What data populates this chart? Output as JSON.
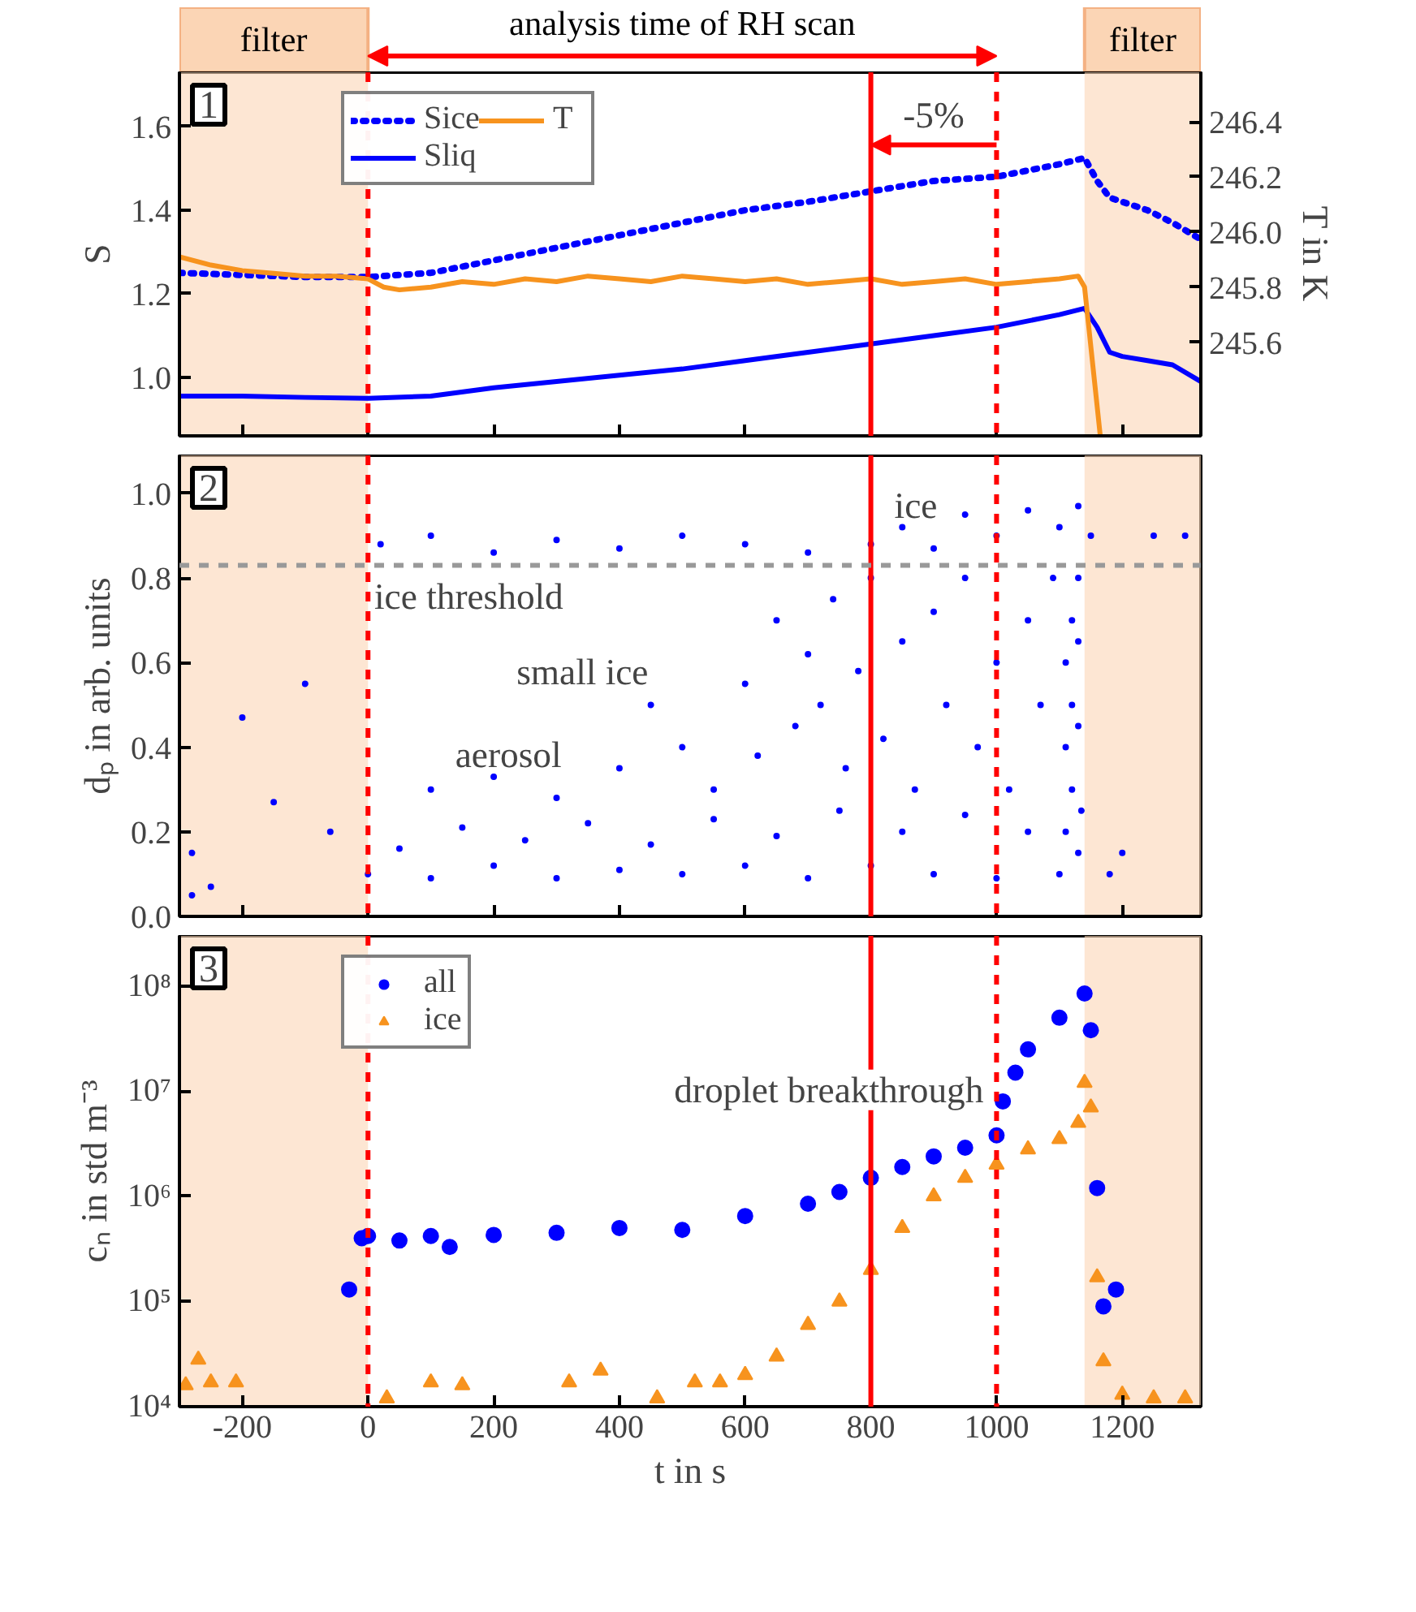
{
  "chart_data": [
    {
      "type": "line",
      "ylabel": "S",
      "y2label": "T in K",
      "xlim": [
        -300,
        1325
      ],
      "ylim": [
        0.86,
        1.73
      ],
      "y2lim": [
        245.26,
        246.58
      ],
      "xticks": [
        -200,
        0,
        200,
        400,
        600,
        800,
        1000,
        1200
      ],
      "yticks": [
        {
          "value": 1.0,
          "label": "1.0"
        },
        {
          "value": 1.2,
          "label": "1.2"
        },
        {
          "value": 1.4,
          "label": "1.4"
        },
        {
          "value": 1.6,
          "label": "1.6"
        }
      ],
      "y2ticks": [
        {
          "value": 245.6,
          "label": "245.6"
        },
        {
          "value": 245.8,
          "label": "245.8"
        },
        {
          "value": 246.0,
          "label": "246.0"
        },
        {
          "value": 246.2,
          "label": "246.2"
        },
        {
          "value": 246.4,
          "label": "246.4"
        }
      ],
      "tick_labels": "y",
      "grid": false,
      "legend": "top left",
      "annotations": [
        "1",
        "analysis time of RH scan",
        "-5%"
      ],
      "bands": [
        {
          "axis": "x",
          "from": -300,
          "to": 0,
          "label": "filter",
          "color": "#fbd5b5"
        },
        {
          "axis": "x",
          "from": 1140,
          "to": 1325,
          "label": "filter",
          "color": "#fbd5b5"
        }
      ],
      "ref_lines": [
        {
          "axis": "x",
          "value": 0,
          "color": "#ff0000",
          "line_style": "dashed"
        },
        {
          "axis": "x",
          "value": 800,
          "color": "#ff0000",
          "line_style": "solid"
        },
        {
          "axis": "x",
          "value": 1000,
          "color": "#ff0000",
          "line_style": "dashed"
        }
      ],
      "series": [
        {
          "name": "Sice",
          "color": "#0000ff",
          "line_style": "dotted",
          "x": [
            -300,
            -200,
            -100,
            0,
            100,
            200,
            300,
            400,
            500,
            600,
            700,
            800,
            900,
            1000,
            1100,
            1140,
            1160,
            1180,
            1200,
            1240,
            1280,
            1325
          ],
          "values": [
            1.25,
            1.245,
            1.24,
            1.24,
            1.25,
            1.28,
            1.31,
            1.34,
            1.37,
            1.4,
            1.42,
            1.445,
            1.47,
            1.48,
            1.51,
            1.525,
            1.47,
            1.43,
            1.42,
            1.4,
            1.37,
            1.33
          ]
        },
        {
          "name": "Sliq",
          "color": "#0000ff",
          "line_style": "solid",
          "x": [
            -300,
            -200,
            -100,
            0,
            100,
            200,
            300,
            400,
            500,
            600,
            700,
            800,
            900,
            1000,
            1100,
            1140,
            1160,
            1180,
            1200,
            1240,
            1280,
            1325
          ],
          "values": [
            0.955,
            0.955,
            0.952,
            0.95,
            0.955,
            0.975,
            0.99,
            1.005,
            1.02,
            1.04,
            1.06,
            1.08,
            1.1,
            1.12,
            1.15,
            1.165,
            1.12,
            1.06,
            1.05,
            1.04,
            1.03,
            0.99
          ]
        },
        {
          "name": "T",
          "color": "#f7931e",
          "line_style": "solid",
          "axis": "y2",
          "x": [
            -300,
            -250,
            -200,
            -150,
            -100,
            -50,
            0,
            25,
            50,
            100,
            150,
            200,
            250,
            300,
            350,
            400,
            450,
            500,
            550,
            600,
            650,
            700,
            750,
            800,
            850,
            900,
            950,
            1000,
            1050,
            1100,
            1130,
            1140,
            1165
          ],
          "values": [
            245.91,
            245.88,
            245.86,
            245.85,
            245.84,
            245.84,
            245.83,
            245.8,
            245.79,
            245.8,
            245.82,
            245.81,
            245.83,
            245.82,
            245.84,
            245.83,
            245.82,
            245.84,
            245.83,
            245.82,
            245.83,
            245.81,
            245.82,
            245.83,
            245.81,
            245.82,
            245.83,
            245.81,
            245.82,
            245.83,
            245.84,
            245.8,
            245.26
          ]
        }
      ]
    },
    {
      "type": "scatter",
      "ylabel": "dₚ in arb. units",
      "xlim": [
        -300,
        1325
      ],
      "ylim": [
        0,
        1.09
      ],
      "xticks": [
        -200,
        0,
        200,
        400,
        600,
        800,
        1000,
        1200
      ],
      "yticks": [
        {
          "value": 0,
          "label": "0.0"
        },
        {
          "value": 0.2,
          "label": "0.2"
        },
        {
          "value": 0.4,
          "label": "0.4"
        },
        {
          "value": 0.6,
          "label": "0.6"
        },
        {
          "value": 0.8,
          "label": "0.8"
        },
        {
          "value": 1.0,
          "label": "1.0"
        }
      ],
      "tick_labels": "y",
      "grid": false,
      "marker": "circle",
      "annotations": [
        "2",
        "ice",
        "small ice",
        "aerosol"
      ],
      "bands": [
        {
          "axis": "x",
          "from": -300,
          "to": 0,
          "color": "#fbd5b5"
        },
        {
          "axis": "x",
          "from": 1140,
          "to": 1325,
          "color": "#fbd5b5"
        }
      ],
      "ref_lines": [
        {
          "axis": "x",
          "value": 0,
          "color": "#ff0000",
          "line_style": "dashed"
        },
        {
          "axis": "x",
          "value": 800,
          "color": "#ff0000",
          "line_style": "solid"
        },
        {
          "axis": "x",
          "value": 1000,
          "color": "#ff0000",
          "line_style": "dashed"
        },
        {
          "axis": "y",
          "value": 0.83,
          "label": "ice threshold",
          "color": "#999999",
          "line_style": "dashed"
        }
      ],
      "series": [
        {
          "color": "#0000ff",
          "x": [
            0,
            50,
            100,
            150,
            200,
            250,
            300,
            350,
            400,
            450,
            500,
            550,
            600,
            650,
            700,
            750,
            800,
            850,
            900,
            950,
            1000,
            1050,
            1100,
            1130,
            20,
            100,
            200,
            300,
            400,
            500,
            600,
            700,
            800,
            850,
            900,
            950,
            1000,
            1050,
            1100,
            1130,
            100,
            200,
            300,
            400,
            450,
            500,
            550,
            600,
            620,
            650,
            680,
            700,
            720,
            740,
            760,
            780,
            800,
            820,
            850,
            870,
            900,
            920,
            950,
            970,
            1000,
            1020,
            1050,
            1070,
            1090,
            1110,
            1110,
            1110,
            1120,
            1120,
            1120,
            1130,
            1130,
            1130,
            1135,
            -280,
            -250,
            -200,
            -150,
            -100,
            -60,
            -280,
            1150,
            1200,
            1180,
            1250,
            1300
          ],
          "values": [
            0.1,
            0.16,
            0.09,
            0.21,
            0.12,
            0.18,
            0.09,
            0.22,
            0.11,
            0.17,
            0.1,
            0.23,
            0.12,
            0.19,
            0.09,
            0.25,
            0.12,
            0.2,
            0.1,
            0.24,
            0.09,
            0.2,
            0.1,
            0.15,
            0.88,
            0.9,
            0.86,
            0.89,
            0.87,
            0.9,
            0.88,
            0.86,
            0.88,
            0.92,
            0.87,
            0.95,
            0.9,
            0.96,
            0.92,
            0.97,
            0.3,
            0.33,
            0.28,
            0.35,
            0.5,
            0.4,
            0.3,
            0.55,
            0.38,
            0.7,
            0.45,
            0.62,
            0.5,
            0.75,
            0.35,
            0.58,
            0.8,
            0.42,
            0.65,
            0.3,
            0.72,
            0.5,
            0.8,
            0.4,
            0.6,
            0.3,
            0.7,
            0.5,
            0.8,
            0.2,
            0.4,
            0.6,
            0.3,
            0.5,
            0.7,
            0.45,
            0.65,
            0.8,
            0.25,
            0.15,
            0.07,
            0.47,
            0.27,
            0.55,
            0.2,
            0.05,
            0.9,
            0.15,
            0.1,
            0.9,
            0.9
          ]
        }
      ]
    },
    {
      "type": "scatter",
      "ylabel": "cₙ in std m⁻³",
      "xlabel": "t in s",
      "xlim": [
        -300,
        1325
      ],
      "ylim": [
        10000,
        300000000
      ],
      "log": "y",
      "xticks": [
        -200,
        0,
        200,
        400,
        600,
        800,
        1000,
        1200
      ],
      "yticks": [
        {
          "value": 10000,
          "label": "10⁴"
        },
        {
          "value": 100000,
          "label": "10⁵"
        },
        {
          "value": 1000000,
          "label": "10⁶"
        },
        {
          "value": 10000000,
          "label": "10⁷"
        },
        {
          "value": 100000000,
          "label": "10⁸"
        }
      ],
      "grid": false,
      "legend": "top left",
      "annotations": [
        "3",
        {
          "text": "droplet breakthrough",
          "x": 1000,
          "y": 3800000
        }
      ],
      "bands": [
        {
          "axis": "x",
          "from": -300,
          "to": 0,
          "color": "#fbd5b5"
        },
        {
          "axis": "x",
          "from": 1140,
          "to": 1325,
          "color": "#fbd5b5"
        }
      ],
      "ref_lines": [
        {
          "axis": "x",
          "value": 0,
          "color": "#ff0000",
          "line_style": "dashed"
        },
        {
          "axis": "x",
          "value": 800,
          "color": "#ff0000",
          "line_style": "solid"
        },
        {
          "axis": "x",
          "value": 1000,
          "color": "#ff0000",
          "line_style": "dashed"
        }
      ],
      "series": [
        {
          "name": "all",
          "color": "#0000ff",
          "marker": "circle",
          "x": [
            -30,
            -10,
            0,
            50,
            100,
            130,
            200,
            300,
            400,
            500,
            600,
            700,
            750,
            800,
            850,
            900,
            950,
            1000,
            1010,
            1030,
            1050,
            1100,
            1140,
            1150,
            1160,
            1170,
            1190
          ],
          "values": [
            130000,
            400000,
            420000,
            380000,
            420000,
            330000,
            430000,
            450000,
            500000,
            480000,
            650000,
            850000,
            1100000,
            1500000,
            1900000,
            2400000,
            2900000,
            3800000,
            8000000,
            15000000,
            25000000,
            50000000,
            85000000,
            38000000,
            1200000,
            90000,
            130000
          ]
        },
        {
          "name": "ice",
          "color": "#f7931e",
          "marker": "triangle",
          "x": [
            -290,
            -270,
            -250,
            -210,
            30,
            100,
            150,
            320,
            370,
            460,
            520,
            560,
            600,
            650,
            700,
            750,
            800,
            850,
            900,
            950,
            1000,
            1050,
            1100,
            1130,
            1140,
            1150,
            1160,
            1170,
            1200,
            1250,
            1300
          ],
          "values": [
            16000,
            28000,
            17000,
            17000,
            12000,
            17000,
            16000,
            17000,
            22000,
            12000,
            17000,
            17000,
            20000,
            30000,
            60000,
            100000,
            200000,
            500000,
            1000000,
            1500000,
            2000000,
            2800000,
            3500000,
            5000000,
            12000000,
            7000000,
            170000,
            27000,
            13000,
            12000,
            12000
          ]
        }
      ]
    }
  ]
}
